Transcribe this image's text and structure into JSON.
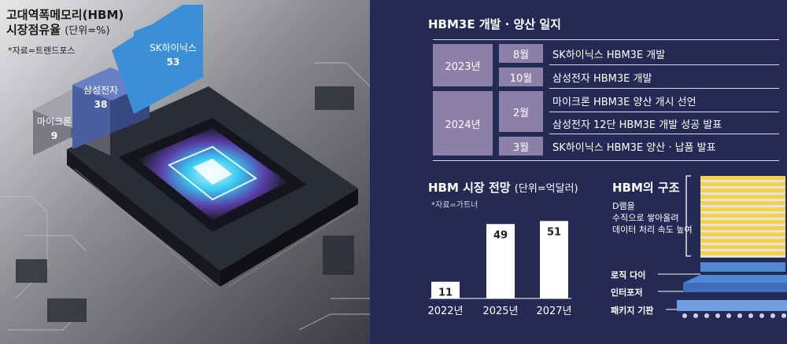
{
  "market_share": {
    "title": "고대역폭메모리(HBM)",
    "subtitle": "시장점유율",
    "unit": "(단위=%)",
    "source": "*자료=트렌드포스"
  },
  "timeline": {
    "title": "HBM3E 개발 · 양산 일지",
    "rows": [
      {
        "year": "2023년",
        "month": "8월",
        "event": "SK하이닉스 HBM3E 개발"
      },
      {
        "year": "",
        "month": "10월",
        "event": "삼성전자 HBM3E 개발"
      },
      {
        "year": "2024년",
        "month": "2월",
        "event": "마이크론 HBM3E 양산 개시 선언"
      },
      {
        "year": "",
        "month": "",
        "event": "삼성전자 12단 HBM3E 개발 성공 발표"
      },
      {
        "year": "",
        "month": "3월",
        "event": "SK하이닉스 HBM3E 양산 · 납품 발표"
      }
    ]
  },
  "forecast": {
    "title": "HBM 시장 전망",
    "unit": "(단위=억달러)",
    "source": "*자료=가트너"
  },
  "structure": {
    "title": "HBM의 구조",
    "desc_lines": [
      "D램을",
      "수직으로 쌓아올려",
      "데이터 처리 속도 높여"
    ],
    "layers": [
      "로직 다이",
      "인터포저",
      "패키지 기판"
    ]
  },
  "colors": {
    "navy_panel": "#252a55",
    "timeline_box": "#8a80a8",
    "skhynix_bar": "#3b8fd6",
    "samsung_bar": "#4a5fa0",
    "micron_bar": "#7a7a86"
  },
  "chart_data": [
    {
      "type": "bar",
      "title": "고대역폭메모리(HBM) 시장점유율",
      "categories": [
        "마이크론",
        "삼성전자",
        "SK하이닉스"
      ],
      "values": [
        9,
        38,
        53
      ]
    },
    {
      "type": "bar",
      "title": "HBM 시장 전망",
      "categories": [
        "2022년",
        "2025년",
        "2027년"
      ],
      "values": [
        11,
        49,
        51
      ],
      "ylim": [
        0,
        60
      ]
    }
  ]
}
